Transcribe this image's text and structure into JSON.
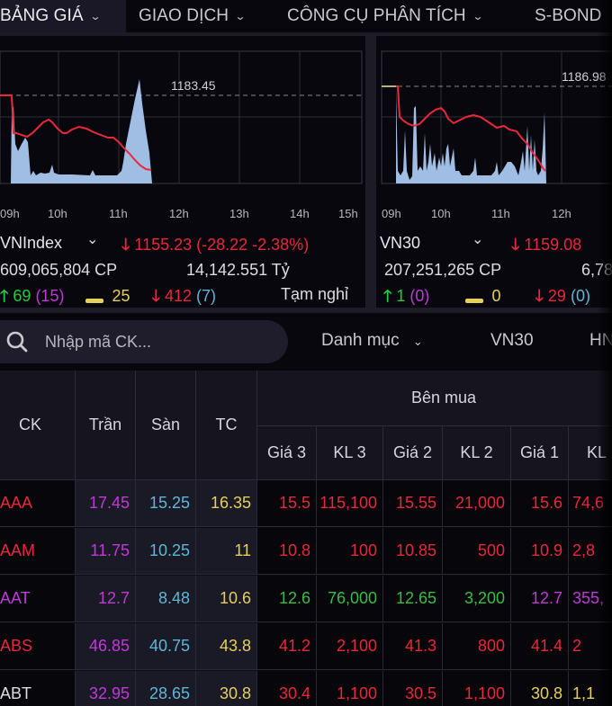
{
  "nav": {
    "items": [
      {
        "label": "BẢNG GIÁ",
        "has_dropdown": true,
        "active": true
      },
      {
        "label": "GIAO DỊCH",
        "has_dropdown": true,
        "active": false
      },
      {
        "label": "CÔNG CỤ PHÂN TÍCH",
        "has_dropdown": true,
        "active": false
      },
      {
        "label": "S-BOND",
        "has_dropdown": false,
        "active": false
      }
    ],
    "chevron": "⌄"
  },
  "indices": [
    {
      "name": "VNIndex",
      "value": "1155.23",
      "change": "(-28.22 -2.38%)",
      "volume": "609,065,804 CP",
      "turnover": "14,142.551 Tỷ",
      "advances": "69",
      "ceiling_count": "(15)",
      "unchanged": "25",
      "declines": "412",
      "floor_count": "(7)",
      "status": "Tạm nghỉ",
      "ref_value": "1183.45",
      "time_axis": [
        "09h",
        "10h",
        "11h",
        "12h",
        "13h",
        "14h",
        "15h"
      ]
    },
    {
      "name": "VN30",
      "value": "1159.08",
      "volume": "207,251,265 CP",
      "turnover": "6,78",
      "advances": "1",
      "ceiling_count": "(0)",
      "unchanged": "0",
      "declines": "29",
      "floor_count": "(0)",
      "ref_value": "1186.98",
      "time_axis": [
        "09h",
        "10h",
        "11h",
        "12h"
      ]
    }
  ],
  "icons": {
    "up_arrow": "🡑",
    "down_arrow": "🡓",
    "dropdown": "⌄"
  },
  "search": {
    "placeholder": "Nhập mã CK...",
    "icon": "search-icon"
  },
  "filters": {
    "category": "Danh mục",
    "vn30": "VN30",
    "hnx_partial": "HN"
  },
  "table": {
    "headers": {
      "ck": "CK",
      "tran": "Trần",
      "san": "Sàn",
      "tc": "TC",
      "ben_mua": "Bên mua",
      "gia3": "Giá 3",
      "kl3": "KL 3",
      "gia2": "Giá 2",
      "kl2": "KL 2",
      "gia1": "Giá 1",
      "kl1": "KL"
    },
    "rows": [
      {
        "ck": "AAA",
        "ck_color": "#e8283c",
        "tran": "17.45",
        "san": "15.25",
        "tc": "16.35",
        "gia3": "15.5",
        "kl3": "115,100",
        "gia2": "15.55",
        "kl2": "21,000",
        "gia1": "15.6",
        "kl1": "74,6",
        "c3": "#e8283c",
        "c2": "#e8283c",
        "c1": "#e8283c"
      },
      {
        "ck": "AAM",
        "ck_color": "#e8283c",
        "tran": "11.75",
        "san": "10.25",
        "tc": "11",
        "gia3": "10.8",
        "kl3": "100",
        "gia2": "10.85",
        "kl2": "500",
        "gia1": "10.9",
        "kl1": "2,8",
        "c3": "#e8283c",
        "c2": "#e8283c",
        "c1": "#e8283c"
      },
      {
        "ck": "AAT",
        "ck_color": "#c03ad8",
        "tran": "12.7",
        "san": "8.48",
        "tc": "10.6",
        "gia3": "12.6",
        "kl3": "76,000",
        "gia2": "12.65",
        "kl2": "3,200",
        "gia1": "12.7",
        "kl1": "355,",
        "c3": "#3dbb45",
        "c2": "#3dbb45",
        "c1": "#c03ad8"
      },
      {
        "ck": "ABS",
        "ck_color": "#e8283c",
        "tran": "46.85",
        "san": "40.75",
        "tc": "43.8",
        "gia3": "41.2",
        "kl3": "2,100",
        "gia2": "41.3",
        "kl2": "800",
        "gia1": "41.4",
        "kl1": "2",
        "c3": "#e8283c",
        "c2": "#e8283c",
        "c1": "#e8283c"
      },
      {
        "ck": "ABT",
        "ck_color": "#dcdce2",
        "tran": "32.95",
        "san": "28.65",
        "tc": "30.8",
        "gia3": "30.4",
        "kl3": "1,100",
        "gia2": "30.5",
        "kl2": "1,100",
        "gia1": "30.8",
        "kl1": "1,1",
        "c3": "#e8283c",
        "c2": "#e8283c",
        "c1": "#e8cf5a"
      }
    ]
  },
  "colors": {
    "ceiling": "#c03ad8",
    "floor": "#5fb7d6",
    "reference": "#e8cf5a",
    "down": "#e8283c",
    "up": "#27c93f",
    "background": "#07070d",
    "volume_fill": "#a9c8ef",
    "price_line": "#e8283c"
  }
}
